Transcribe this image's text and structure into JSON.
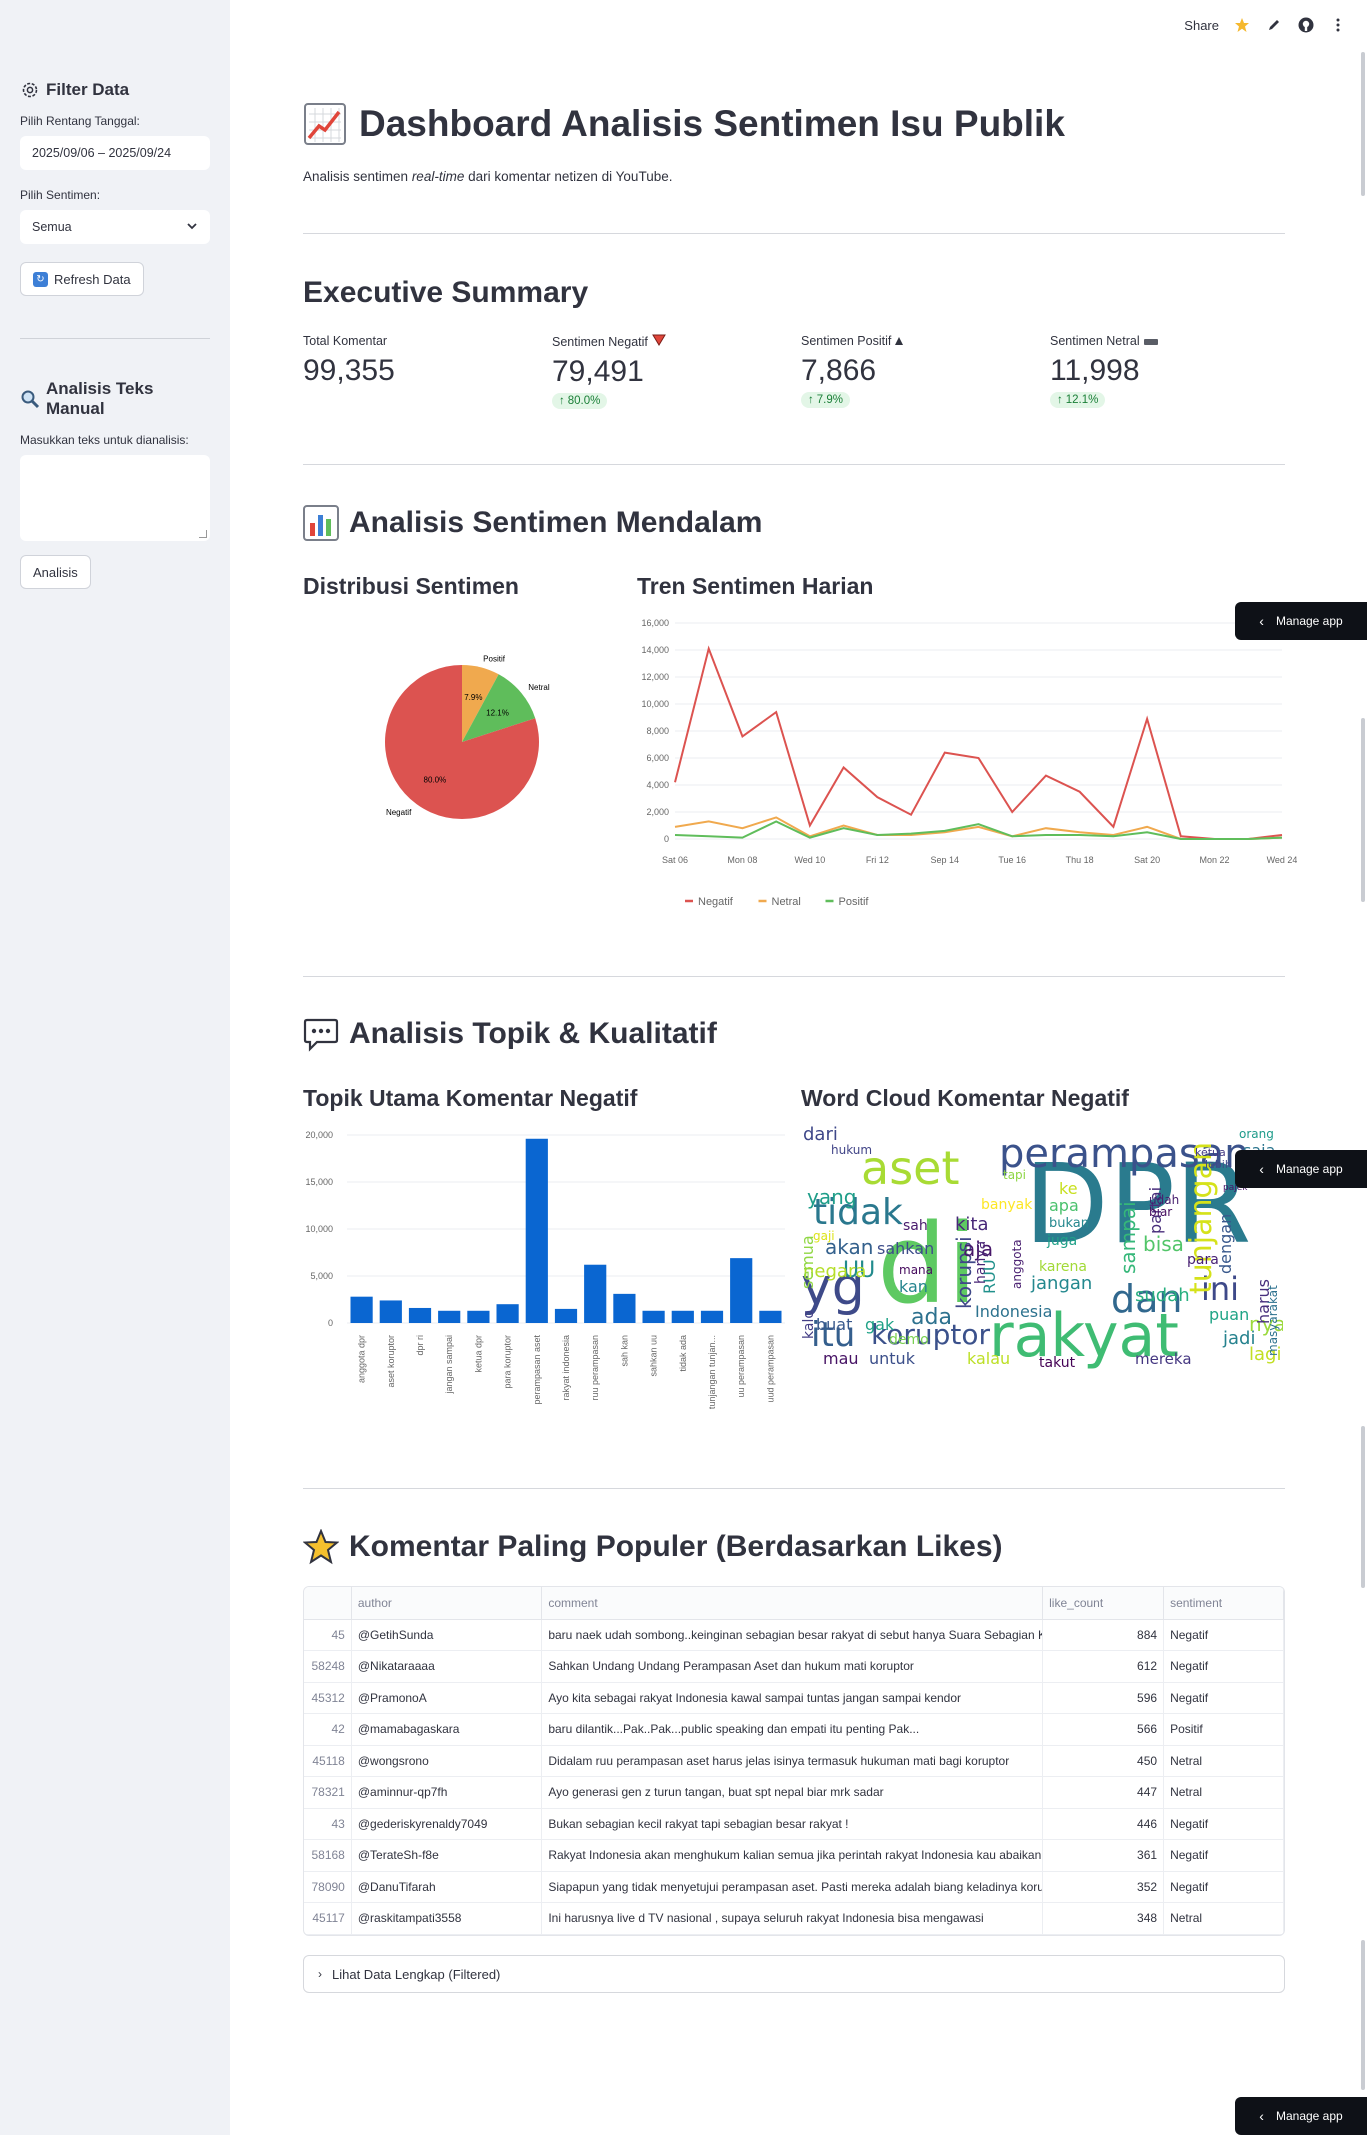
{
  "toolbar": {
    "share": "Share"
  },
  "sidebar": {
    "filter_title": "Filter Data",
    "date_label": "Pilih Rentang Tanggal:",
    "date_value": "2025/09/06 – 2025/09/24",
    "sentiment_label": "Pilih Sentimen:",
    "sentiment_value": "Semua",
    "refresh_label": "Refresh Data",
    "manual_title": "Analisis Teks Manual",
    "text_label": "Masukkan teks untuk dianalisis:",
    "analyze_label": "Analisis"
  },
  "header": {
    "title": "Dashboard Analisis Sentimen Isu Publik",
    "subtitle_pre": "Analisis sentimen ",
    "subtitle_em": "real-time",
    "subtitle_post": " dari komentar netizen di YouTube."
  },
  "summary": {
    "title": "Executive Summary",
    "metrics": [
      {
        "label": "Total Komentar",
        "value": "99,355",
        "delta": ""
      },
      {
        "label": "Sentimen Negatif",
        "value": "79,491",
        "delta": "80.0%"
      },
      {
        "label": "Sentimen Positif",
        "value": "7,866",
        "delta": "7.9%"
      },
      {
        "label": "Sentimen Netral",
        "value": "11,998",
        "delta": "12.1%"
      }
    ]
  },
  "deep": {
    "title": "Analisis Sentimen Mendalam",
    "pie_title": "Distribusi Sentimen",
    "line_title": "Tren Sentimen Harian"
  },
  "topics": {
    "title": "Analisis Topik & Kualitatif",
    "bar_title": "Topik Utama Komentar Negatif",
    "cloud_title": "Word Cloud Komentar Negatif"
  },
  "popular": {
    "title": "Komentar Paling Populer (Berdasarkan Likes)",
    "columns": [
      "",
      "author",
      "comment",
      "like_count",
      "sentiment"
    ],
    "rows": [
      [
        "45",
        "@GetihSunda",
        "baru naek udah sombong..keinginan sebagian besar rakyat di sebut hanya Suara Sebagian Ke",
        "884",
        "Negatif"
      ],
      [
        "58248",
        "@Nikataraaaa",
        "Sahkan Undang Undang Perampasan Aset dan hukum mati koruptor",
        "612",
        "Negatif"
      ],
      [
        "45312",
        "@PramonoA",
        "Ayo kita sebagai rakyat Indonesia kawal sampai tuntas  jangan sampai kendor",
        "596",
        "Negatif"
      ],
      [
        "42",
        "@mamabagaskara",
        "baru dilantik...Pak..Pak...public speaking dan empati itu penting Pak...",
        "566",
        "Positif"
      ],
      [
        "45118",
        "@wongsrono",
        "Didalam ruu perampasan aset harus jelas isinya termasuk hukuman mati bagi koruptor",
        "450",
        "Netral"
      ],
      [
        "78321",
        "@aminnur-qp7fh",
        "Ayo generasi gen z turun tangan, buat spt nepal biar mrk sadar",
        "447",
        "Netral"
      ],
      [
        "43",
        "@gederiskyrenaldy7049",
        "Bukan sebagian kecil rakyat tapi sebagian besar rakyat !",
        "446",
        "Negatif"
      ],
      [
        "58168",
        "@TerateSh-f8e",
        "Rakyat Indonesia akan menghukum kalian semua jika perintah rakyat Indonesia kau abaikan...",
        "361",
        "Negatif"
      ],
      [
        "78090",
        "@DanuTifarah",
        "Siapapun yang tidak menyetujui perampasan aset. Pasti mereka adalah biang keladinya korup",
        "352",
        "Negatif"
      ],
      [
        "45117",
        "@raskitampati3558",
        "Ini harusnya live d TV nasional , supaya seluruh rakyat Indonesia bisa mengawasi",
        "348",
        "Netral"
      ]
    ],
    "expander": "Lihat Data Lengkap (Filtered)"
  },
  "manage_app": "Manage app",
  "wordcloud": {
    "words": [
      "DPR",
      "di",
      "rakyat",
      "perampasan",
      "aset",
      "tidak",
      "yg",
      "dan",
      "itu",
      "koruptor",
      "ini",
      "tunjangan",
      "korupsi",
      "sampai",
      "jangan",
      "Indonesia",
      "ada",
      "akan",
      "yang",
      "sahkan",
      "UU",
      "negara",
      "kita",
      "aja",
      "banyak",
      "sudah",
      "bisa",
      "dengan",
      "jadi",
      "untuk",
      "mereka",
      "takut",
      "kalau",
      "lagi",
      "mau",
      "buat",
      "gak",
      "nya",
      "hanya",
      "RUU",
      "sah",
      "partai",
      "puan",
      "harus",
      "hukum",
      "dari",
      "semua",
      "kalo",
      "ketua",
      "pajek",
      "demo",
      "kan",
      "para",
      "mana",
      "saja",
      "orang",
      "bukan",
      "juga",
      "karena",
      "udah",
      "biar",
      "anggota",
      "gaji",
      "apa",
      "ke",
      "lebih",
      "tapi",
      "masyarakat"
    ],
    "colors": {
      "DPR": "#2a7b8e",
      "di": "#5ec962",
      "rakyat": "#3fbc73",
      "perampasan": "#3b528b",
      "aset": "#a8db34",
      "tidak": "#2a788e",
      "yg": "#3e4a89",
      "dan": "#31688e",
      "itu": "#355f8d",
      "koruptor": "#3b518b",
      "ini": "#3e4989",
      "tunjangan": "#d5e21a",
      "korupsi": "#3f4788",
      "sampai": "#35b779",
      "jangan": "#23888e",
      "Indonesia": "#2c728e",
      "ada": "#2d718e",
      "akan": "#34618d",
      "yang": "#1f9e89",
      "sahkan": "#3d4d8a",
      "UU": "#228b8d",
      "negara": "#b5de2b",
      "kita": "#482878",
      "aja": "#48186a",
      "banyak": "#fde725",
      "sudah": "#29af7f",
      "bisa": "#52c569",
      "dengan": "#38588c",
      "jadi": "#26828e",
      "untuk": "#3c4f8a",
      "mereka": "#453781",
      "takut": "#440154",
      "kalau": "#bddf26",
      "lagi": "#c2df23",
      "mau": "#471365",
      "buat": "#38588c",
      "gak": "#1fa287",
      "nya": "#9bd93c",
      "hanya": "#482475",
      "RUU": "#21918c",
      "sah": "#481a6c",
      "partai": "#472d7b",
      "puan": "#20a486",
      "harus": "#472f7d",
      "hukum": "#414487",
      "dari": "#3f4889",
      "semua": "#90d743",
      "kalo": "#433e85",
      "ketua": "#443a83",
      "pajek": "#481467",
      "demo": "#7ad151",
      "kan": "#25848e",
      "para": "#482173",
      "mana": "#460b5e",
      "saja": "#2b758e",
      "orang": "#1e9b8a",
      "bukan": "#24878e",
      "juga": "#1fa088",
      "karena": "#a2da37",
      "udah": "#461e6e",
      "biar": "#470e61",
      "anggota": "#4a2071",
      "gaji": "#dde318",
      "apa": "#4ac16d",
      "ke": "#c8e020",
      "lebih": "#3d4a89",
      "tapi": "#8ed645",
      "masyarakat": "#2c718e"
    }
  },
  "chart_data": [
    {
      "type": "pie",
      "title": "Distribusi Sentimen",
      "categories": [
        "Negatif",
        "Positif",
        "Netral"
      ],
      "values": [
        80.0,
        7.9,
        12.1
      ],
      "value_labels": [
        "80.0%",
        "7.9%",
        "12.1%"
      ],
      "colors": [
        "#dc5350",
        "#f0a94e",
        "#5fbd5b"
      ]
    },
    {
      "type": "line",
      "title": "Tren Sentimen Harian",
      "x": [
        "2025-09-06",
        "2025-09-07",
        "2025-09-08",
        "2025-09-09",
        "2025-09-10",
        "2025-09-11",
        "2025-09-12",
        "2025-09-13",
        "2025-09-14",
        "2025-09-15",
        "2025-09-16",
        "2025-09-17",
        "2025-09-18",
        "2025-09-19",
        "2025-09-20",
        "2025-09-21",
        "2025-09-22",
        "2025-09-23",
        "2025-09-24"
      ],
      "x_tick_labels": [
        "Sat 06",
        "Mon 08",
        "Wed 10",
        "Fri 12",
        "Sep 14",
        "Tue 16",
        "Thu 18",
        "Sat 20",
        "Mon 22",
        "Wed 24"
      ],
      "ylim": [
        0,
        16000
      ],
      "y_ticks": [
        "0",
        "2,000",
        "4,000",
        "6,000",
        "8,000",
        "10,000",
        "12,000",
        "14,000",
        "16,000"
      ],
      "legend": "bottom-left",
      "grid": true,
      "series": [
        {
          "name": "Negatif",
          "color": "#dc5350",
          "values": [
            4200,
            14100,
            7600,
            9400,
            1000,
            5300,
            3100,
            1800,
            6400,
            6000,
            2000,
            4700,
            3500,
            900,
            8900,
            200,
            0,
            0,
            300
          ]
        },
        {
          "name": "Netral",
          "color": "#f0a94e",
          "values": [
            900,
            1300,
            800,
            1600,
            200,
            1000,
            300,
            300,
            500,
            900,
            200,
            800,
            500,
            300,
            900,
            0,
            0,
            0,
            100
          ]
        },
        {
          "name": "Positif",
          "color": "#5fbd5b",
          "values": [
            300,
            200,
            100,
            1300,
            100,
            800,
            300,
            400,
            600,
            1100,
            200,
            300,
            300,
            200,
            500,
            0,
            0,
            0,
            100
          ]
        }
      ]
    },
    {
      "type": "bar",
      "title": "Topik Utama Komentar Negatif",
      "categories": [
        "anggota dpr",
        "aset koruptor",
        "dpr ri",
        "jangan sampai",
        "ketua dpr",
        "para koruptor",
        "perampasan aset",
        "rakyat indonesia",
        "ruu perampasan",
        "sah kan",
        "sahkan uu",
        "tidak ada",
        "tunjangan tunjan...",
        "uu perampasan",
        "uud perampasan"
      ],
      "values": [
        2800,
        2400,
        1600,
        1300,
        1300,
        2000,
        19600,
        1500,
        6200,
        3100,
        1300,
        1300,
        1300,
        6900,
        1300
      ],
      "ylim": [
        0,
        20000
      ],
      "y_ticks": [
        "0",
        "5,000",
        "10,000",
        "15,000",
        "20,000"
      ],
      "grid": true,
      "color": "#0a66d1"
    }
  ]
}
